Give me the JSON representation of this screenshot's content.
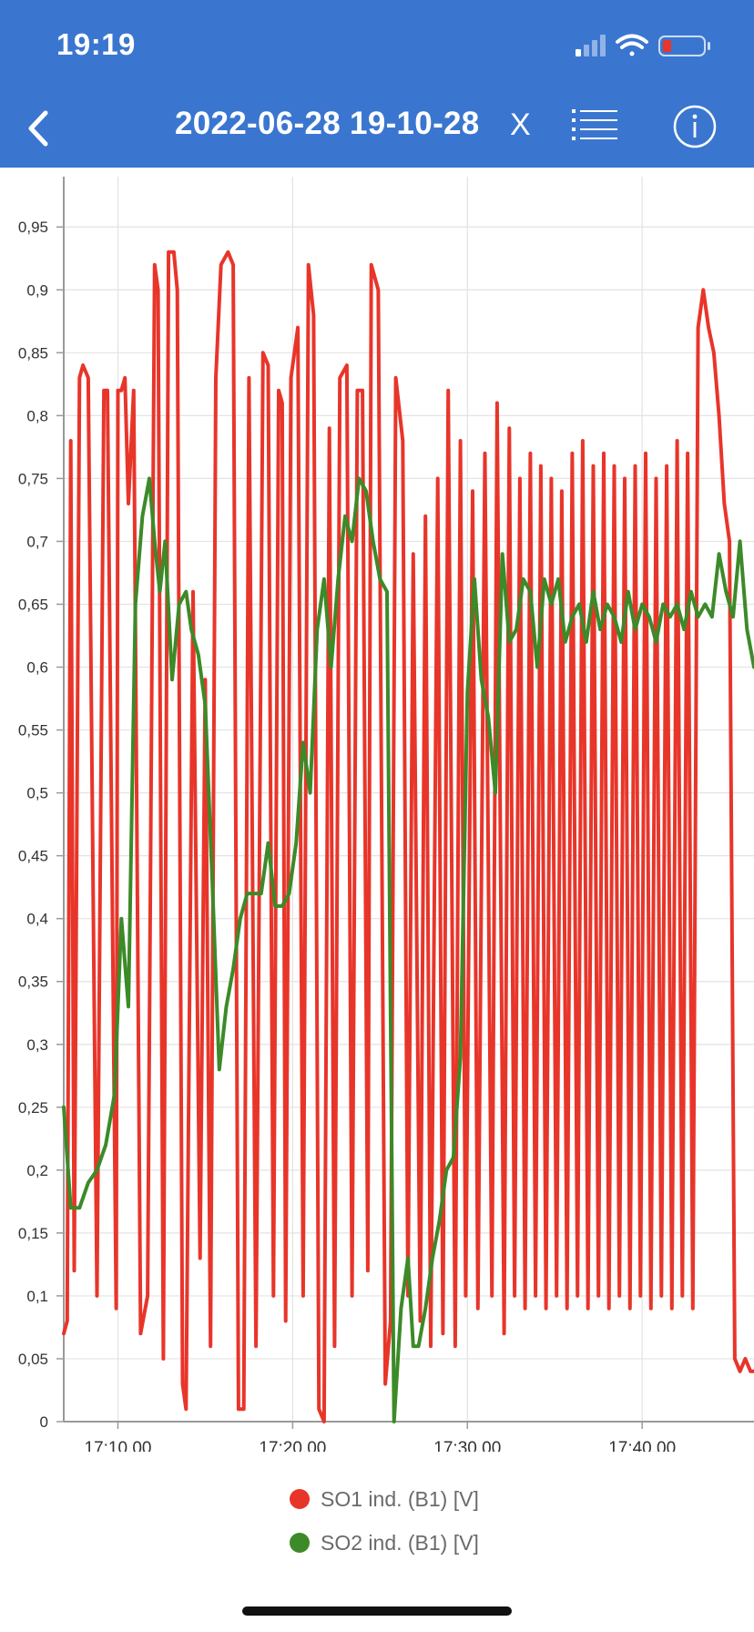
{
  "status_bar": {
    "time": "19:19",
    "icons": [
      "cellular-signal-icon",
      "wifi-icon",
      "battery-low-icon"
    ]
  },
  "nav": {
    "back_icon": "chevron-left-icon",
    "title": "2022-06-28 19-10-28",
    "close_label": "X",
    "list_icon": "list-icon",
    "info_icon": "info-icon"
  },
  "colors": {
    "header_bg": "#3a76cf",
    "series_1": "#e8352a",
    "series_2": "#3c8a28"
  },
  "chart_data": {
    "type": "line",
    "xlabel": "",
    "ylabel": "",
    "xlim": [
      "17:06.90",
      "17:46.40"
    ],
    "ylim": [
      0,
      0.99
    ],
    "grid": true,
    "legend_position": "bottom",
    "x_ticks": [
      "17:10.00",
      "17:20.00",
      "17:30.00",
      "17:40.00"
    ],
    "y_ticks": [
      "0",
      "0,05",
      "0,1",
      "0,15",
      "0,2",
      "0,25",
      "0,3",
      "0,35",
      "0,4",
      "0,45",
      "0,5",
      "0,55",
      "0,6",
      "0,65",
      "0,7",
      "0,75",
      "0,8",
      "0,85",
      "0,9",
      "0,95"
    ],
    "y_tick_values": [
      0,
      0.05,
      0.1,
      0.15,
      0.2,
      0.25,
      0.3,
      0.35,
      0.4,
      0.45,
      0.5,
      0.55,
      0.6,
      0.65,
      0.7,
      0.75,
      0.8,
      0.85,
      0.9,
      0.95
    ],
    "x_tick_minutes": [
      10,
      20,
      30,
      40
    ],
    "x_range_minutes": [
      6.9,
      46.4
    ],
    "series": [
      {
        "name": "SO1 ind. (B1) [V]",
        "color": "#e8352a",
        "x": [
          6.9,
          7.1,
          7.3,
          7.5,
          7.8,
          8.0,
          8.3,
          8.8,
          9.2,
          9.4,
          9.9,
          10.0,
          10.2,
          10.4,
          10.6,
          10.9,
          11.3,
          11.7,
          12.1,
          12.3,
          12.6,
          12.9,
          13.2,
          13.4,
          13.7,
          13.9,
          14.3,
          14.7,
          15.0,
          15.3,
          15.6,
          15.9,
          16.3,
          16.6,
          16.9,
          17.2,
          17.5,
          17.9,
          18.3,
          18.6,
          18.9,
          19.2,
          19.4,
          19.6,
          19.9,
          20.3,
          20.6,
          20.9,
          21.2,
          21.5,
          21.8,
          22.1,
          22.4,
          22.7,
          23.1,
          23.4,
          23.7,
          24.0,
          24.3,
          24.5,
          24.9,
          25.3,
          25.6,
          25.9,
          26.3,
          26.6,
          26.9,
          27.3,
          27.6,
          27.9,
          28.3,
          28.6,
          28.9,
          29.3,
          29.6,
          29.9,
          30.3,
          30.6,
          31.0,
          31.4,
          31.7,
          32.1,
          32.4,
          32.7,
          33.0,
          33.3,
          33.6,
          33.9,
          34.2,
          34.5,
          34.8,
          35.1,
          35.4,
          35.7,
          36.0,
          36.3,
          36.6,
          36.9,
          37.2,
          37.5,
          37.8,
          38.1,
          38.4,
          38.7,
          39.0,
          39.3,
          39.6,
          39.9,
          40.2,
          40.5,
          40.8,
          41.1,
          41.4,
          41.7,
          42.0,
          42.3,
          42.6,
          42.9,
          43.2,
          43.5,
          43.8,
          44.1,
          44.4,
          44.7,
          45.0,
          45.3,
          45.6,
          45.9,
          46.2,
          46.4
        ],
        "values": [
          0.07,
          0.08,
          0.78,
          0.12,
          0.83,
          0.84,
          0.83,
          0.1,
          0.82,
          0.82,
          0.09,
          0.82,
          0.82,
          0.83,
          0.73,
          0.82,
          0.07,
          0.1,
          0.92,
          0.9,
          0.05,
          0.93,
          0.93,
          0.9,
          0.03,
          0.01,
          0.66,
          0.13,
          0.59,
          0.06,
          0.83,
          0.92,
          0.93,
          0.92,
          0.01,
          0.01,
          0.83,
          0.06,
          0.85,
          0.84,
          0.1,
          0.82,
          0.81,
          0.08,
          0.83,
          0.87,
          0.1,
          0.92,
          0.88,
          0.01,
          0.0,
          0.79,
          0.06,
          0.83,
          0.84,
          0.1,
          0.82,
          0.82,
          0.12,
          0.92,
          0.9,
          0.03,
          0.08,
          0.83,
          0.78,
          0.1,
          0.69,
          0.08,
          0.72,
          0.06,
          0.75,
          0.07,
          0.82,
          0.06,
          0.78,
          0.1,
          0.74,
          0.09,
          0.77,
          0.1,
          0.81,
          0.07,
          0.79,
          0.1,
          0.75,
          0.09,
          0.77,
          0.1,
          0.76,
          0.09,
          0.75,
          0.1,
          0.74,
          0.09,
          0.77,
          0.1,
          0.78,
          0.09,
          0.76,
          0.1,
          0.77,
          0.09,
          0.76,
          0.1,
          0.75,
          0.09,
          0.76,
          0.1,
          0.77,
          0.09,
          0.75,
          0.1,
          0.76,
          0.09,
          0.78,
          0.1,
          0.77,
          0.09,
          0.87,
          0.9,
          0.87,
          0.85,
          0.8,
          0.73,
          0.7,
          0.05,
          0.04,
          0.05,
          0.04,
          0.04
        ],
        "note": ""
      },
      {
        "name": "SO2 ind. (B1) [V]",
        "color": "#3c8a28",
        "x": [
          6.9,
          7.3,
          7.8,
          8.3,
          8.8,
          9.3,
          9.8,
          10.2,
          10.6,
          11.0,
          11.4,
          11.8,
          12.1,
          12.4,
          12.7,
          13.1,
          13.5,
          13.9,
          14.2,
          14.6,
          15.0,
          15.4,
          15.8,
          16.2,
          16.6,
          17.0,
          17.4,
          17.8,
          18.2,
          18.6,
          19.0,
          19.4,
          19.8,
          20.2,
          20.6,
          21.0,
          21.4,
          21.8,
          22.2,
          22.6,
          23.0,
          23.4,
          23.8,
          24.2,
          24.6,
          25.0,
          25.4,
          25.8,
          26.2,
          26.6,
          26.9,
          27.2,
          27.6,
          28.0,
          28.4,
          28.8,
          29.2,
          29.6,
          30.0,
          30.4,
          30.8,
          31.2,
          31.6,
          32.0,
          32.4,
          32.8,
          33.2,
          33.6,
          34.0,
          34.4,
          34.8,
          35.2,
          35.6,
          36.0,
          36.4,
          36.8,
          37.2,
          37.6,
          38.0,
          38.4,
          38.8,
          39.2,
          39.6,
          40.0,
          40.4,
          40.8,
          41.2,
          41.6,
          42.0,
          42.4,
          42.8,
          43.2,
          43.6,
          44.0,
          44.4,
          44.8,
          45.2,
          45.6,
          46.0,
          46.4
        ],
        "values": [
          0.25,
          0.17,
          0.17,
          0.19,
          0.2,
          0.22,
          0.26,
          0.4,
          0.33,
          0.65,
          0.72,
          0.75,
          0.7,
          0.66,
          0.7,
          0.59,
          0.65,
          0.66,
          0.63,
          0.61,
          0.57,
          0.43,
          0.28,
          0.33,
          0.36,
          0.4,
          0.42,
          0.42,
          0.42,
          0.46,
          0.41,
          0.41,
          0.42,
          0.46,
          0.54,
          0.5,
          0.63,
          0.67,
          0.6,
          0.67,
          0.72,
          0.7,
          0.75,
          0.74,
          0.7,
          0.67,
          0.66,
          0.0,
          0.09,
          0.13,
          0.06,
          0.06,
          0.09,
          0.13,
          0.16,
          0.2,
          0.21,
          0.29,
          0.58,
          0.67,
          0.59,
          0.56,
          0.5,
          0.69,
          0.62,
          0.63,
          0.67,
          0.66,
          0.6,
          0.67,
          0.65,
          0.67,
          0.62,
          0.64,
          0.65,
          0.62,
          0.66,
          0.63,
          0.65,
          0.64,
          0.62,
          0.66,
          0.63,
          0.65,
          0.64,
          0.62,
          0.65,
          0.64,
          0.65,
          0.63,
          0.66,
          0.64,
          0.65,
          0.64,
          0.69,
          0.66,
          0.64,
          0.7,
          0.63,
          0.6
        ]
      }
    ]
  },
  "legend": {
    "items": [
      {
        "label": "SO1 ind. (B1) [V]",
        "color": "#e8352a"
      },
      {
        "label": "SO2 ind. (B1) [V]",
        "color": "#3c8a28"
      }
    ]
  }
}
